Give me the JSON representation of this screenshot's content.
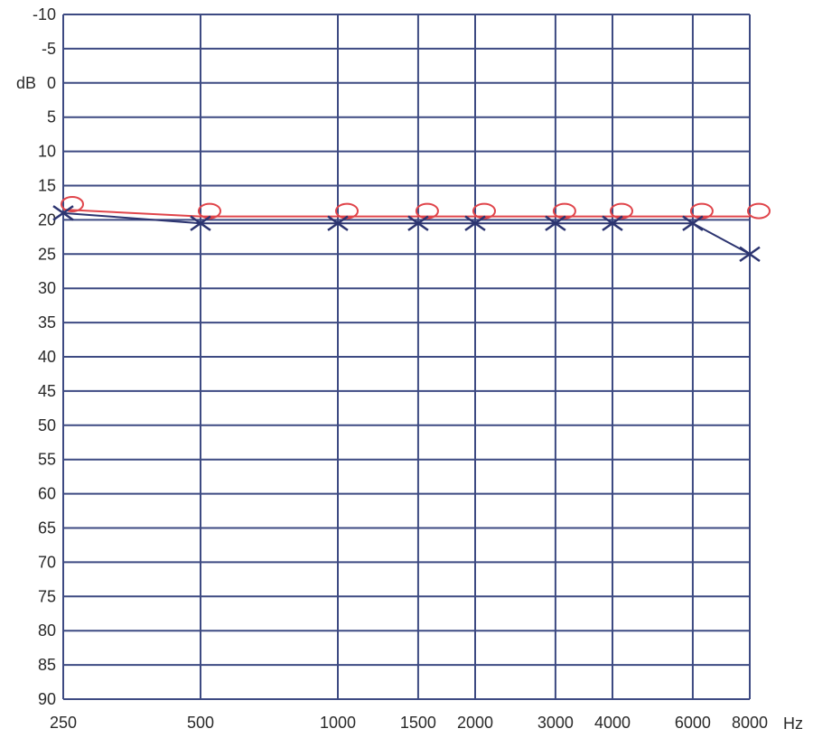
{
  "chart_data": {
    "type": "line",
    "title": "",
    "ylabel": "dB",
    "xlabel": "Hz",
    "x_scale": "log",
    "y_inverted": true,
    "ylim": [
      -10,
      90
    ],
    "y_ticks": [
      -10,
      -5,
      0,
      5,
      10,
      15,
      20,
      25,
      30,
      35,
      40,
      45,
      50,
      55,
      60,
      65,
      70,
      75,
      80,
      85,
      90
    ],
    "y_tick_labels": [
      "-10",
      "-5",
      "0",
      "5",
      "10",
      "15",
      "20",
      "25",
      "30",
      "35",
      "40",
      "45",
      "50",
      "55",
      "60",
      "65",
      "70",
      "75",
      "80",
      "85",
      "90"
    ],
    "x": [
      250,
      500,
      1000,
      1500,
      2000,
      3000,
      4000,
      6000,
      8000
    ],
    "x_tick_labels": [
      "250",
      "500",
      "1000",
      "1500",
      "2000",
      "3000",
      "4000",
      "6000",
      "8000"
    ],
    "grid": true,
    "colors": {
      "grid": "#3d4a82",
      "red_series": "#e0454b",
      "blue_series": "#2c3470"
    },
    "series": [
      {
        "marker": "circle",
        "color": "#e0454b",
        "values": [
          18.5,
          19.5,
          19.5,
          19.5,
          19.5,
          19.5,
          19.5,
          19.5,
          19.5
        ]
      },
      {
        "marker": "cross",
        "color": "#2c3470",
        "values": [
          19,
          20.5,
          20.5,
          20.5,
          20.5,
          20.5,
          20.5,
          20.5,
          25
        ]
      }
    ]
  }
}
